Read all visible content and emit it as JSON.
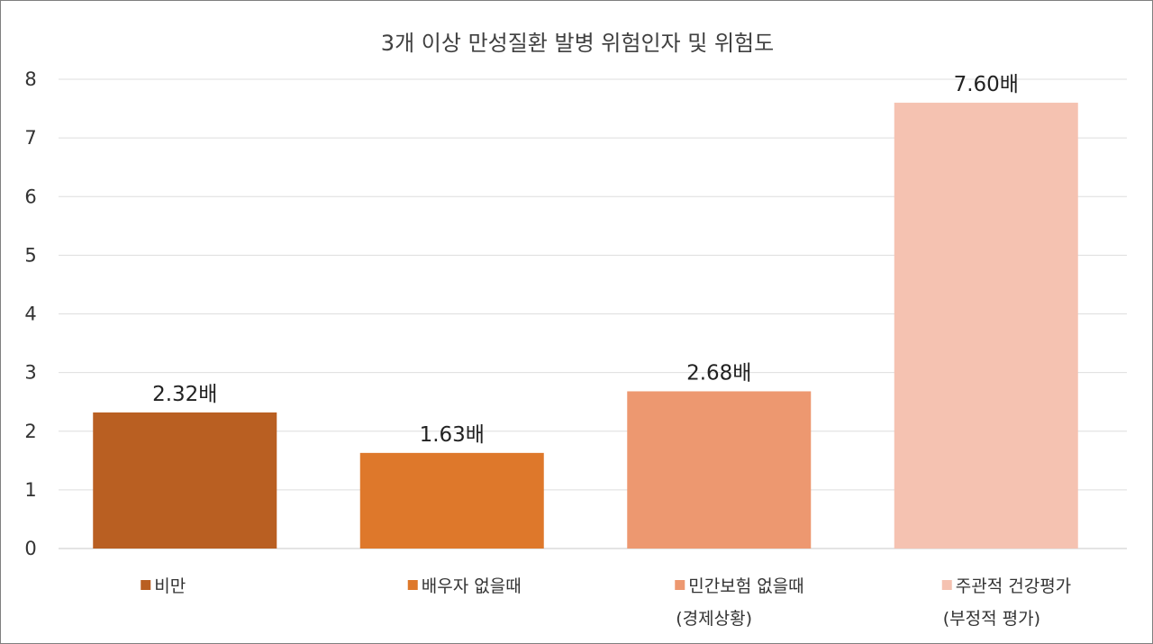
{
  "chart_data": {
    "type": "bar",
    "title": "3개 이상 만성질환 발병 위험인자 및 위험도",
    "ylim": [
      0,
      8
    ],
    "yticks": [
      "0",
      "1",
      "2",
      "3",
      "4",
      "5",
      "6",
      "7",
      "8"
    ],
    "grid": true,
    "legend_position": "bottom",
    "categories": [
      {
        "label": "비만",
        "sublabel": "",
        "value": 2.32,
        "value_label": "2.32배",
        "color": "#b95f22"
      },
      {
        "label": "배우자 없을때",
        "sublabel": "",
        "value": 1.63,
        "value_label": "1.63배",
        "color": "#de782b"
      },
      {
        "label": "민간보험 없을때",
        "sublabel": "(경제상황)",
        "value": 2.68,
        "value_label": "2.68배",
        "color": "#ed9870"
      },
      {
        "label": "주관적 건강평가",
        "sublabel": "(부정적 평가)",
        "value": 7.6,
        "value_label": "7.60배",
        "color": "#f5c2b1"
      }
    ]
  }
}
